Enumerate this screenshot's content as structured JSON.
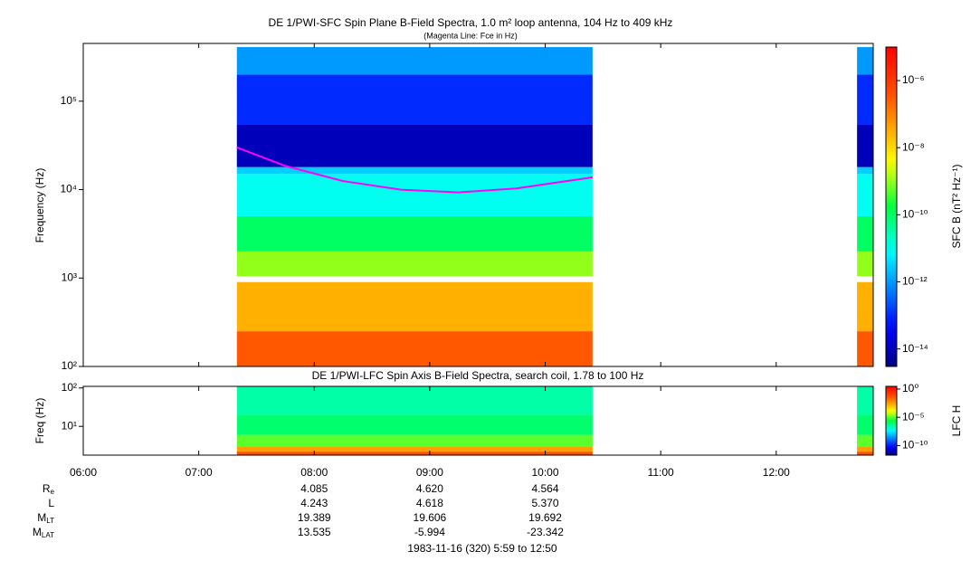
{
  "chart_data": [
    {
      "type": "spectrogram",
      "title": "DE 1/PWI-SFC  Spin Plane B-Field Spectra, 1.0 m² loop antenna, 104 Hz to 409 kHz",
      "subtitle": "(Magenta Line: Fce in Hz)",
      "y_label": "Frequency (Hz)",
      "z_label": "SFC B (nT² Hz⁻¹)",
      "xlim": [
        6,
        12.84
      ],
      "ylim": [
        100,
        450000
      ],
      "ylog": true,
      "yticks": [
        {
          "value": 100,
          "label": "10²"
        },
        {
          "value": 1000,
          "label": "10³"
        },
        {
          "value": 10000,
          "label": "10⁴"
        },
        {
          "value": 100000,
          "label": "10⁵"
        }
      ],
      "zlim": [
        3e-15,
        1e-05
      ],
      "zlog": true,
      "zticks": [
        {
          "value": 1e-06,
          "label": "10⁻⁶"
        },
        {
          "value": 1e-08,
          "label": "10⁻⁸"
        },
        {
          "value": 1e-10,
          "label": "10⁻¹⁰"
        },
        {
          "value": 1e-12,
          "label": "10⁻¹²"
        },
        {
          "value": 1e-14,
          "label": "10⁻¹⁴"
        }
      ],
      "segments": [
        [
          7.33,
          10.41
        ],
        [
          12.7,
          12.84
        ]
      ],
      "bands": [
        {
          "flim": [
            100,
            250
          ],
          "z": 3e-07
        },
        {
          "flim": [
            250,
            900
          ],
          "z": 3e-08
        },
        {
          "flim": [
            1050,
            2000
          ],
          "z": 1e-09
        },
        {
          "flim": [
            2000,
            5000
          ],
          "z": 1e-10
        },
        {
          "flim": [
            5000,
            15000
          ],
          "z": 1e-11
        },
        {
          "flim": [
            15000,
            18000
          ],
          "z": 3e-12
        },
        {
          "flim": [
            18000,
            55000
          ],
          "z": 1e-14
        },
        {
          "flim": [
            55000,
            200000
          ],
          "z": 1e-13
        },
        {
          "flim": [
            200000,
            409000
          ],
          "z": 1e-12
        }
      ],
      "fce": {
        "color": "#ff00ff",
        "x": [
          7.33,
          7.75,
          8.25,
          8.75,
          9.25,
          9.75,
          10.41
        ],
        "values": [
          30000,
          18500,
          12500,
          10000,
          9300,
          10300,
          13800
        ]
      }
    },
    {
      "type": "spectrogram",
      "title": "DE 1/PWI-LFC  Spin Axis B-Field Spectra, search coil, 1.78 to 100 Hz",
      "y_label": "Freq (Hz)",
      "z_label": "LFC H",
      "xlim": [
        6,
        12.84
      ],
      "xticks": [
        {
          "value": 6,
          "label": "06:00"
        },
        {
          "value": 7,
          "label": "07:00"
        },
        {
          "value": 8,
          "label": "08:00"
        },
        {
          "value": 9,
          "label": "09:00"
        },
        {
          "value": 10,
          "label": "10:00"
        },
        {
          "value": 11,
          "label": "11:00"
        },
        {
          "value": 12,
          "label": "12:00"
        }
      ],
      "ylim": [
        1.78,
        110
      ],
      "ylog": true,
      "yticks": [
        {
          "value": 10,
          "label": "10¹"
        },
        {
          "value": 100,
          "label": "10²"
        }
      ],
      "zlim": [
        2e-12,
        3
      ],
      "zlog": true,
      "zticks": [
        {
          "value": 1,
          "label": "10⁰"
        },
        {
          "value": 1e-05,
          "label": "10⁻⁵"
        },
        {
          "value": 1e-10,
          "label": "10⁻¹⁰"
        }
      ],
      "segments": [
        [
          7.33,
          10.41
        ],
        [
          12.7,
          12.84
        ]
      ],
      "bands": [
        {
          "flim": [
            1.78,
            2.2
          ],
          "z": 0.05
        },
        {
          "flim": [
            2.2,
            3
          ],
          "z": 0.003
        },
        {
          "flim": [
            3,
            6
          ],
          "z": 1e-05
        },
        {
          "flim": [
            6,
            20
          ],
          "z": 1e-06
        },
        {
          "flim": [
            20,
            110
          ],
          "z": 3e-07
        }
      ],
      "ephemeris": {
        "x": [
          8,
          9,
          10
        ],
        "rows": [
          {
            "label": "R",
            "sub": "e",
            "values": [
              "4.085",
              "4.620",
              "4.564"
            ]
          },
          {
            "label": "L",
            "values": [
              "4.243",
              "4.618",
              "5.370"
            ]
          },
          {
            "label": "M",
            "sub": "LT",
            "values": [
              "19.389",
              "19.606",
              "19.692"
            ]
          },
          {
            "label": "M",
            "sub": "LAT",
            "values": [
              "13.535",
              "-5.994",
              "-23.342"
            ]
          }
        ]
      },
      "footer": "1983-11-16 (320) 5:59 to 12:50"
    }
  ]
}
